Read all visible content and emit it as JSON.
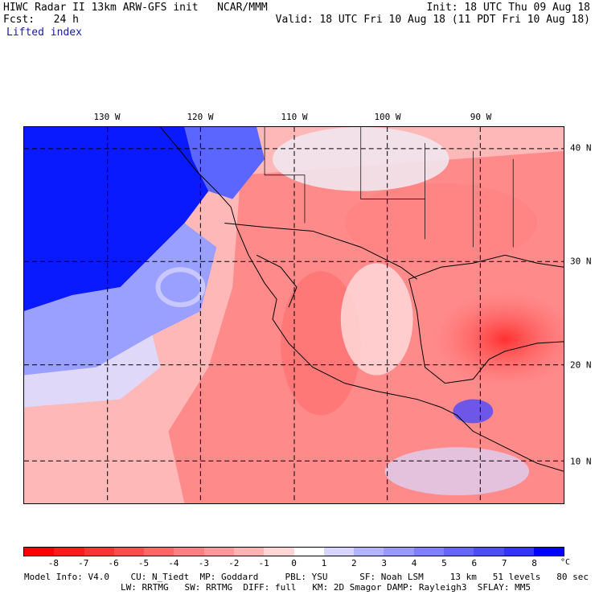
{
  "header": {
    "line1_left": "HIWC Radar II 13km ARW-GFS init   NCAR/MMM",
    "line2_left": "Fcst:   24 h",
    "field": "Lifted index",
    "line1_right": "Init: 18 UTC Thu 09 Aug 18",
    "line2_right": "Valid: 18 UTC Fri 10 Aug 18 (11 PDT Fri 10 Aug 18)"
  },
  "map": {
    "lon_labels": [
      "130 W",
      "120 W",
      "110 W",
      "100 W",
      "90 W"
    ],
    "lat_labels": [
      "40 N",
      "30 N",
      "20 N",
      "10 N"
    ]
  },
  "colorbar": {
    "labels": [
      "-8",
      "-7",
      "-6",
      "-5",
      "-4",
      "-3",
      "-2",
      "-1",
      "0",
      "1",
      "2",
      "3",
      "4",
      "5",
      "6",
      "7",
      "8"
    ],
    "unit": "°C",
    "colors": [
      "#ff0000",
      "#ff1a1a",
      "#ff3333",
      "#ff4d4d",
      "#ff6666",
      "#ff8080",
      "#ff9999",
      "#ffb3b3",
      "#ffd5d5",
      "#ffffff",
      "#d5d5ff",
      "#b3b3ff",
      "#9999ff",
      "#8080ff",
      "#6666ff",
      "#4d4dff",
      "#3333ff",
      "#0000ff"
    ]
  },
  "footer": {
    "line1": "Model Info: V4.0    CU: N_Tiedt  MP: Goddard     PBL: YSU      SF: Noah LSM     13 km   51 levels   80 sec",
    "line2": "LW: RRTMG   SW: RRTMG  DIFF: full   KM: 2D Smagor DAMP: Rayleigh3  SFLAY: MM5"
  }
}
